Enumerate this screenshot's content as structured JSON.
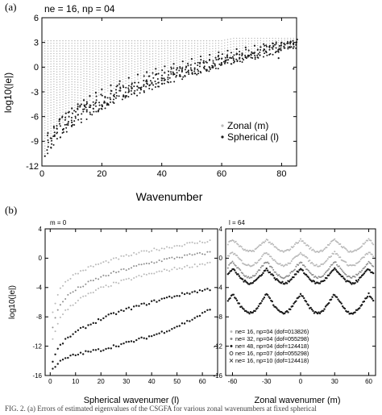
{
  "figure": {
    "panel_a_tag": "(a)",
    "panel_b_tag": "(b)",
    "caption": "FIG. 2. (a) Errors of estimated eigenvalues of the CSGFA for various zonal wavenumbers at fixed spherical"
  },
  "colors": {
    "light": "#b8b8b8",
    "mid": "#8c8c8c",
    "dark": "#1a1a1a",
    "axis": "#000000"
  },
  "chart_data": [
    {
      "id": "a",
      "type": "scatter",
      "title": "ne = 16, np = 04",
      "xlabel": "Wavenumber",
      "ylabel": "log10(|e|)",
      "xlim": [
        0,
        85
      ],
      "ylim": [
        -12,
        6
      ],
      "xticks": [
        0,
        20,
        40,
        60,
        80
      ],
      "yticks": [
        -12,
        -9,
        -6,
        -3,
        0,
        3,
        6
      ],
      "grid": false,
      "legend_position": "bottom-right",
      "series": [
        {
          "name": "Zonal (m)",
          "marker": "dot",
          "color": "#b8b8b8",
          "description": "for each zonal wavenumber a column of points spanning from log10 about 3.2 down to a floor that rises with wavenumber",
          "columns": [
            {
              "x": 1,
              "top": 3.2,
              "bottom": -10.5
            },
            {
              "x": 5,
              "top": 3.2,
              "bottom": -7.5
            },
            {
              "x": 10,
              "top": 3.2,
              "bottom": -5.5
            },
            {
              "x": 15,
              "top": 3.2,
              "bottom": -4.2
            },
            {
              "x": 20,
              "top": 3.2,
              "bottom": -3.2
            },
            {
              "x": 25,
              "top": 3.2,
              "bottom": -2.4
            },
            {
              "x": 30,
              "top": 3.2,
              "bottom": -1.7
            },
            {
              "x": 35,
              "top": 3.2,
              "bottom": -1.1
            },
            {
              "x": 40,
              "top": 3.2,
              "bottom": -0.6
            },
            {
              "x": 45,
              "top": 3.2,
              "bottom": -0.1
            },
            {
              "x": 50,
              "top": 3.2,
              "bottom": 0.4
            },
            {
              "x": 55,
              "top": 3.2,
              "bottom": 0.8
            },
            {
              "x": 60,
              "top": 3.2,
              "bottom": 1.2
            },
            {
              "x": 64,
              "top": 3.5,
              "bottom": 1.5
            },
            {
              "x": 70,
              "top": 3.5,
              "bottom": 1.9
            },
            {
              "x": 75,
              "top": 3.5,
              "bottom": 2.2
            },
            {
              "x": 80,
              "top": 3.5,
              "bottom": 2.5
            },
            {
              "x": 85,
              "top": 3.5,
              "bottom": 2.7
            }
          ]
        },
        {
          "name": "Spherical (l)",
          "marker": "dot",
          "color": "#1a1a1a",
          "description": "dense dark band rising with spherical wavenumber",
          "points": [
            {
              "x": 1,
              "y": -10.8
            },
            {
              "x": 2,
              "y": -8.0
            },
            {
              "x": 4,
              "y": -7.2
            },
            {
              "x": 6,
              "y": -6.3
            },
            {
              "x": 8,
              "y": -5.6
            },
            {
              "x": 10,
              "y": -5.0
            },
            {
              "x": 12,
              "y": -4.5
            },
            {
              "x": 14,
              "y": -4.0
            },
            {
              "x": 16,
              "y": -3.5
            },
            {
              "x": 18,
              "y": -3.1
            },
            {
              "x": 20,
              "y": -2.7
            },
            {
              "x": 23,
              "y": -2.2
            },
            {
              "x": 26,
              "y": -1.7
            },
            {
              "x": 29,
              "y": -1.3
            },
            {
              "x": 32,
              "y": -0.9
            },
            {
              "x": 35,
              "y": -0.6
            },
            {
              "x": 38,
              "y": -0.2
            },
            {
              "x": 41,
              "y": 0.1
            },
            {
              "x": 44,
              "y": 0.4
            },
            {
              "x": 47,
              "y": 0.7
            },
            {
              "x": 50,
              "y": 1.0
            },
            {
              "x": 53,
              "y": 1.3
            },
            {
              "x": 56,
              "y": 1.5
            },
            {
              "x": 59,
              "y": 1.8
            },
            {
              "x": 62,
              "y": 2.0
            },
            {
              "x": 65,
              "y": 2.2
            },
            {
              "x": 68,
              "y": 2.4
            },
            {
              "x": 71,
              "y": 2.6
            },
            {
              "x": 74,
              "y": 2.8
            },
            {
              "x": 77,
              "y": 2.9
            },
            {
              "x": 80,
              "y": 3.0
            },
            {
              "x": 83,
              "y": 3.1
            },
            {
              "x": 84,
              "y": -0.2
            },
            {
              "x": 79,
              "y": 1.1
            },
            {
              "x": 60,
              "y": 0.3
            },
            {
              "x": 50,
              "y": -0.4
            },
            {
              "x": 40,
              "y": -1.6
            },
            {
              "x": 30,
              "y": -2.6
            },
            {
              "x": 20,
              "y": -4.6
            },
            {
              "x": 15,
              "y": -5.2
            },
            {
              "x": 10,
              "y": -6.7
            },
            {
              "x": 7,
              "y": -7.6
            }
          ]
        }
      ]
    },
    {
      "id": "b-left",
      "type": "scatter",
      "title": "m = 0",
      "xlabel": "Spherical wavenumer (l)",
      "ylabel": "log10(|e|)",
      "xlim": [
        -2,
        66
      ],
      "ylim": [
        -16,
        4
      ],
      "xticks": [
        0,
        10,
        20,
        30,
        40,
        50,
        60
      ],
      "yticks": [
        -16,
        -12,
        -8,
        -4,
        0,
        4
      ],
      "grid": false,
      "series": [
        {
          "style": "light",
          "points": [
            {
              "x": 1,
              "y": -7.5
            },
            {
              "x": 3,
              "y": -4.8
            },
            {
              "x": 5,
              "y": -3.6
            },
            {
              "x": 8,
              "y": -2.6
            },
            {
              "x": 12,
              "y": -1.8
            },
            {
              "x": 16,
              "y": -1.2
            },
            {
              "x": 20,
              "y": -0.7
            },
            {
              "x": 25,
              "y": -0.2
            },
            {
              "x": 30,
              "y": 0.3
            },
            {
              "x": 35,
              "y": 0.7
            },
            {
              "x": 40,
              "y": 1.1
            },
            {
              "x": 45,
              "y": 1.4
            },
            {
              "x": 50,
              "y": 1.7
            },
            {
              "x": 55,
              "y": 2.0
            },
            {
              "x": 60,
              "y": 2.2
            },
            {
              "x": 63,
              "y": 2.4
            }
          ]
        },
        {
          "style": "mid",
          "points": [
            {
              "x": 1,
              "y": -9.5
            },
            {
              "x": 3,
              "y": -7.0
            },
            {
              "x": 5,
              "y": -5.8
            },
            {
              "x": 8,
              "y": -4.8
            },
            {
              "x": 12,
              "y": -3.9
            },
            {
              "x": 16,
              "y": -3.2
            },
            {
              "x": 20,
              "y": -2.6
            },
            {
              "x": 25,
              "y": -2.0
            },
            {
              "x": 30,
              "y": -1.5
            },
            {
              "x": 35,
              "y": -1.0
            },
            {
              "x": 40,
              "y": -0.6
            },
            {
              "x": 45,
              "y": -0.2
            },
            {
              "x": 50,
              "y": 0.1
            },
            {
              "x": 55,
              "y": 0.4
            },
            {
              "x": 60,
              "y": 0.6
            },
            {
              "x": 63,
              "y": 0.8
            }
          ]
        },
        {
          "style": "light",
          "points": [
            {
              "x": 1,
              "y": -11.0
            },
            {
              "x": 3,
              "y": -8.8
            },
            {
              "x": 5,
              "y": -7.6
            },
            {
              "x": 8,
              "y": -6.5
            },
            {
              "x": 12,
              "y": -5.5
            },
            {
              "x": 16,
              "y": -4.8
            },
            {
              "x": 20,
              "y": -4.1
            },
            {
              "x": 25,
              "y": -3.5
            },
            {
              "x": 30,
              "y": -3.0
            },
            {
              "x": 35,
              "y": -2.5
            },
            {
              "x": 40,
              "y": -2.1
            },
            {
              "x": 45,
              "y": -1.7
            },
            {
              "x": 50,
              "y": -1.4
            },
            {
              "x": 55,
              "y": -1.1
            },
            {
              "x": 60,
              "y": -0.8
            },
            {
              "x": 63,
              "y": -0.6
            }
          ]
        },
        {
          "style": "dark",
          "points": [
            {
              "x": 1,
              "y": -14.0
            },
            {
              "x": 3,
              "y": -12.4
            },
            {
              "x": 5,
              "y": -11.5
            },
            {
              "x": 8,
              "y": -10.6
            },
            {
              "x": 12,
              "y": -9.7
            },
            {
              "x": 16,
              "y": -9.0
            },
            {
              "x": 20,
              "y": -8.3
            },
            {
              "x": 25,
              "y": -7.6
            },
            {
              "x": 30,
              "y": -7.0
            },
            {
              "x": 35,
              "y": -6.5
            },
            {
              "x": 40,
              "y": -6.0
            },
            {
              "x": 45,
              "y": -5.5
            },
            {
              "x": 50,
              "y": -5.1
            },
            {
              "x": 55,
              "y": -4.7
            },
            {
              "x": 60,
              "y": -4.4
            },
            {
              "x": 63,
              "y": -4.2
            }
          ]
        },
        {
          "style": "dark",
          "points": [
            {
              "x": 1,
              "y": -15.0
            },
            {
              "x": 3,
              "y": -14.4
            },
            {
              "x": 5,
              "y": -13.9
            },
            {
              "x": 8,
              "y": -13.4
            },
            {
              "x": 12,
              "y": -13.0
            },
            {
              "x": 16,
              "y": -12.7
            },
            {
              "x": 20,
              "y": -12.5
            },
            {
              "x": 25,
              "y": -12.0
            },
            {
              "x": 30,
              "y": -11.6
            },
            {
              "x": 35,
              "y": -11.1
            },
            {
              "x": 40,
              "y": -10.6
            },
            {
              "x": 45,
              "y": -10.0
            },
            {
              "x": 50,
              "y": -9.3
            },
            {
              "x": 55,
              "y": -8.5
            },
            {
              "x": 60,
              "y": -7.6
            },
            {
              "x": 63,
              "y": -7.0
            }
          ]
        }
      ]
    },
    {
      "id": "b-right",
      "type": "scatter",
      "title": "l = 64",
      "xlabel": "Zonal wavenumer (m)",
      "ylabel": "",
      "xlim": [
        -66,
        66
      ],
      "ylim": [
        -16,
        4
      ],
      "xticks": [
        -60,
        -30,
        0,
        30,
        60
      ],
      "yticks": [
        -16,
        -12,
        -8,
        -4,
        0,
        4
      ],
      "grid": false,
      "legend_position": "bottom-left",
      "legend": [
        {
          "marker": "dot-light",
          "label": "ne= 16, np=04 (dof=013826)"
        },
        {
          "marker": "dot-mid",
          "label": "ne= 32, np=04 (dof=055298)"
        },
        {
          "marker": "dot-dark",
          "label": "ne= 48, np=04 (dof=124418)"
        },
        {
          "marker": "circle",
          "label": "ne= 16, np=07 (dof=055298)"
        },
        {
          "marker": "cross",
          "label": "ne= 16, np=10 (dof=124418)"
        }
      ],
      "series": [
        {
          "style": "light",
          "base": 2.2,
          "amplitude": 1.0
        },
        {
          "style": "light",
          "base": 0.5,
          "amplitude": 1.2
        },
        {
          "style": "mid",
          "base": -0.8,
          "amplitude": 1.5
        },
        {
          "style": "dark",
          "base": -1.8,
          "amplitude": 1.3
        },
        {
          "style": "dark",
          "base": -5.2,
          "amplitude": 2.0
        }
      ]
    }
  ]
}
